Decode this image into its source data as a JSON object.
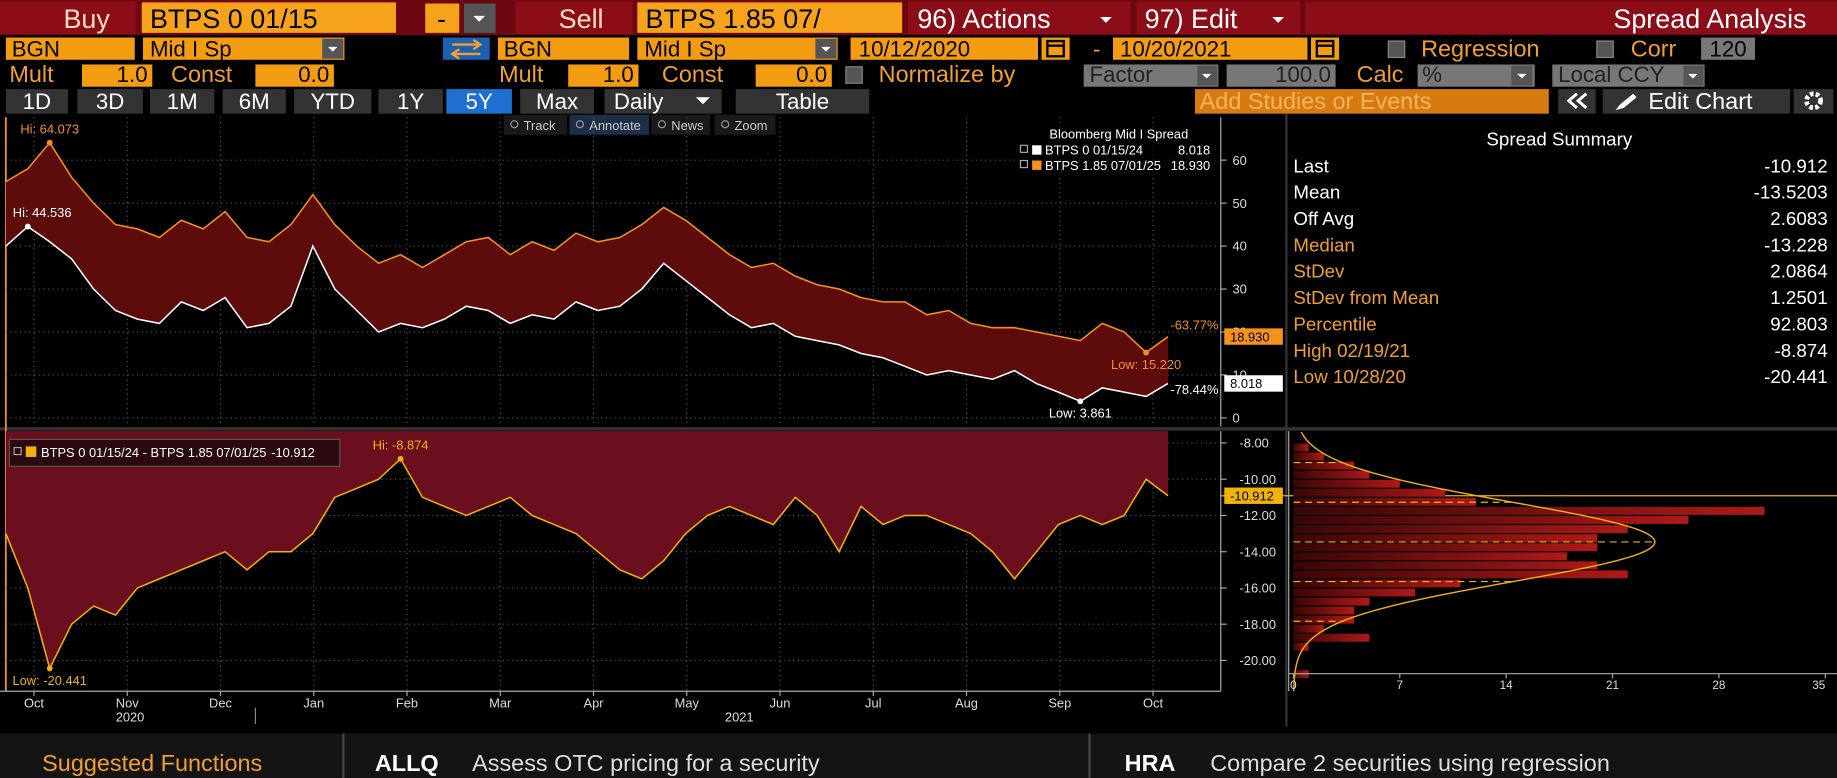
{
  "toolbar": {
    "buy": "Buy",
    "buy_security": "BTPS 0 01/15",
    "minus": "-",
    "sell": "Sell",
    "sell_security": "BTPS 1.85 07/",
    "actions": "96) Actions",
    "edit": "97) Edit",
    "title": "Spread Analysis"
  },
  "settings": {
    "buy_source": "BGN",
    "buy_field": "Mid I Sp",
    "sell_source": "BGN",
    "sell_field": "Mid I Sp",
    "start_date": "10/12/2020",
    "date_sep": "-",
    "end_date": "10/20/2021",
    "regression": "Regression",
    "corr": "Corr",
    "corr_window": "120",
    "mult_label": "Mult",
    "buy_mult": "1.0",
    "const_label": "Const",
    "buy_const": "0.0",
    "sell_mult": "1.0",
    "sell_const": "0.0",
    "normalize": "Normalize by",
    "normalize_method": "Factor",
    "normalize_value": "100.0",
    "calc": "Calc",
    "calc_value": "%",
    "currency": "Local CCY"
  },
  "periods": [
    "1D",
    "3D",
    "1M",
    "6M",
    "YTD",
    "1Y",
    "5Y",
    "Max"
  ],
  "active_period": 6,
  "frequency": "Daily",
  "table": "Table",
  "studies": "Add Studies or Events",
  "edit_chart": "Edit Chart",
  "chart_tools": [
    "Track",
    "Annotate",
    "News",
    "Zoom"
  ],
  "active_tool": 1,
  "chart_data": [
    {
      "type": "line",
      "legend_title": "Bloomberg Mid I Spread",
      "xtick_labels": [
        "Oct",
        "Nov",
        "Dec",
        "Jan",
        "Feb",
        "Mar",
        "Apr",
        "May",
        "Jun",
        "Jul",
        "Aug",
        "Sep",
        "Oct"
      ],
      "years": [
        "2020",
        "2021"
      ],
      "ylim": [
        -2,
        70
      ],
      "yticks": [
        0,
        10,
        20,
        30,
        40,
        50,
        60
      ],
      "grid": true,
      "series": [
        {
          "name": "BTPS 0 01/15/24",
          "color": "#ffffff",
          "values": [
            40,
            44.536,
            41,
            37,
            30,
            25,
            23,
            22,
            27,
            25,
            28,
            21,
            22,
            26,
            40,
            30,
            25,
            20,
            22,
            21,
            23,
            26,
            25,
            22,
            24,
            23,
            27,
            25,
            26,
            30,
            36,
            32,
            28,
            24,
            21,
            22,
            19,
            18,
            17,
            15,
            14,
            12,
            10,
            11,
            10,
            9,
            11,
            8,
            6,
            3.861,
            7,
            6,
            5,
            8.018
          ],
          "last_label": "8.018",
          "change_label": "-78.44%",
          "high_label": "Hi: 44.536",
          "low_label": "Low: 3.861"
        },
        {
          "name": "BTPS 1.85 07/01/25",
          "color": "#f5921e",
          "values": [
            55,
            58,
            64.073,
            56,
            50,
            45,
            44,
            42,
            46,
            44,
            48,
            42,
            41,
            45,
            52,
            45,
            40,
            36,
            38,
            35,
            38,
            41,
            42,
            38,
            41,
            39,
            43,
            41,
            42,
            45,
            49,
            46,
            42,
            38,
            35,
            36,
            33,
            31,
            30,
            28,
            27,
            27,
            24,
            25,
            22,
            21,
            21,
            20,
            19,
            18,
            22,
            20,
            15.22,
            18.93
          ],
          "last_label": "18.930",
          "change_label": "-63.77%",
          "high_label": "Hi: 64.073",
          "low_label": "Low: 15.220"
        }
      ]
    },
    {
      "type": "area",
      "ylim": [
        -21.7,
        -7.35
      ],
      "yticks": [
        {
          "value": -8,
          "label": "-8.00"
        },
        {
          "value": -10,
          "label": "-10.00"
        },
        {
          "value": -12,
          "label": "-12.00"
        },
        {
          "value": -14,
          "label": "-14.00"
        },
        {
          "value": -16,
          "label": "-16.00"
        },
        {
          "value": -18,
          "label": "-18.00"
        },
        {
          "value": -20,
          "label": "-20.00"
        }
      ],
      "grid": true,
      "series": [
        {
          "name": "BTPS 0 01/15/24 - BTPS 1.85 07/01/25",
          "color": "#6b0f1f",
          "line_color": "#f1b20a",
          "values": [
            -13,
            -16,
            -20.441,
            -18,
            -17,
            -17.5,
            -16,
            -15.5,
            -15,
            -14.5,
            -14,
            -15,
            -14,
            -14,
            -13,
            -11,
            -10.5,
            -10,
            -8.874,
            -11,
            -11.5,
            -12,
            -11.5,
            -11,
            -12,
            -12.5,
            -13,
            -14,
            -15,
            -15.5,
            -14.5,
            -13,
            -12,
            -11.5,
            -12,
            -12.5,
            -11,
            -12,
            -14,
            -11.5,
            -12.5,
            -12,
            -12,
            -12.5,
            -13,
            -14,
            -15.5,
            -14,
            -12.5,
            -12,
            -12.5,
            -12,
            -10,
            -10.912
          ],
          "last_label": "-10.912",
          "high_label": "Hi: -8.874",
          "low_label": "Low: -20.441"
        }
      ]
    },
    {
      "type": "histogram",
      "ylim": [
        -21.7,
        -7.35
      ],
      "bins": [
        -21,
        -20.5,
        -20,
        -19.5,
        -19,
        -18.5,
        -18,
        -17.5,
        -17,
        -16.5,
        -16,
        -15.5,
        -15,
        -14.5,
        -14,
        -13.5,
        -13,
        -12.5,
        -12,
        -11.5,
        -11,
        -10.5,
        -10,
        -9.5,
        -9,
        -8.5,
        -8
      ],
      "counts": [
        1,
        0,
        0,
        1,
        5,
        2,
        4,
        4,
        5,
        8,
        11,
        22,
        20,
        18,
        20,
        20,
        22,
        26,
        31,
        12,
        10,
        7,
        5,
        4,
        2,
        1
      ],
      "color": "#b01818",
      "curve_color": "#f1b20a",
      "xlim": [
        0,
        35
      ],
      "xticks": [
        0,
        7,
        14,
        21,
        28,
        35
      ]
    }
  ],
  "summary": {
    "title": "Spread Summary",
    "rows": [
      {
        "label": "Last",
        "value": "-10.912",
        "color": "#ffffff"
      },
      {
        "label": "Mean",
        "value": "-13.5203",
        "color": "#ffffff"
      },
      {
        "label": "Off Avg",
        "value": "2.6083",
        "color": "#ffffff"
      },
      {
        "label": "Median",
        "value": "-13.228",
        "color": "#f0a030"
      },
      {
        "label": "StDev",
        "value": "2.0864",
        "color": "#f0a030"
      },
      {
        "label": "StDev from Mean",
        "value": "1.2501",
        "color": "#f0a030"
      },
      {
        "label": "Percentile",
        "value": "92.803",
        "color": "#f0a030"
      },
      {
        "label": "High 02/19/21",
        "value": "-8.874",
        "color": "#f0a030"
      },
      {
        "label": "Low 10/28/20",
        "value": "-20.441",
        "color": "#f0a030"
      }
    ]
  },
  "footer": {
    "suggested": "Suggested Functions",
    "functions": [
      {
        "code": "ALLQ",
        "description": "Assess OTC pricing for a security"
      },
      {
        "code": "HRA",
        "description": "Compare 2 securities using regression"
      }
    ]
  }
}
